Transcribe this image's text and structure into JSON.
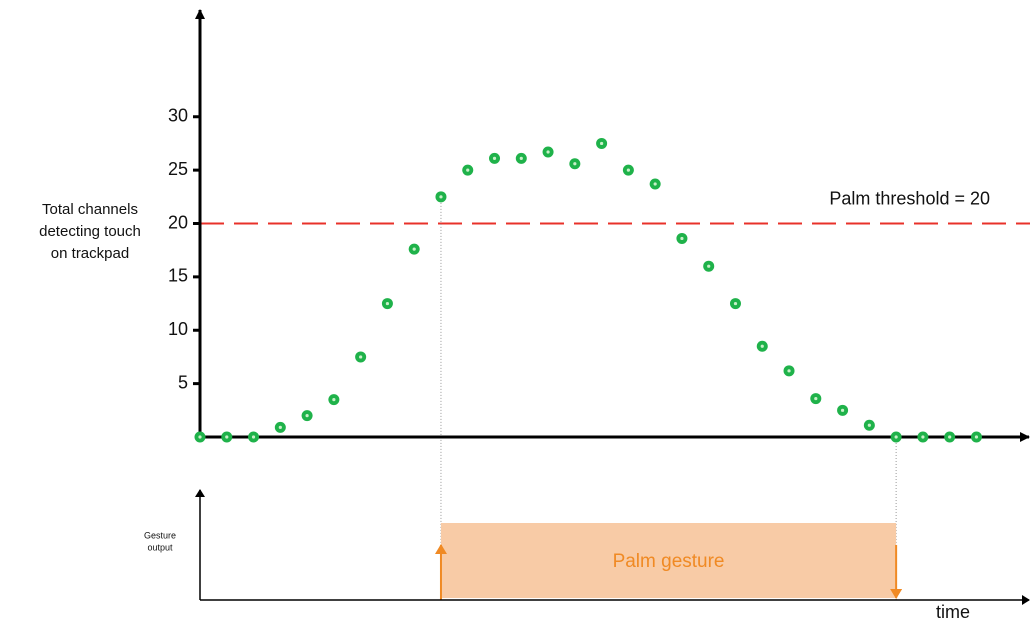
{
  "chart_data": {
    "type": "scatter",
    "ylabel": [
      "Total channels",
      "detecting touch",
      "on trackpad"
    ],
    "x": [
      0,
      1,
      2,
      3,
      4,
      5,
      6,
      7,
      8,
      9,
      10,
      11,
      12,
      13,
      14,
      15,
      16,
      17,
      18,
      19,
      20,
      21,
      22,
      23,
      24,
      25,
      26,
      27,
      28,
      29
    ],
    "values": [
      0,
      0,
      0,
      0.9,
      2,
      3.5,
      7.5,
      12.5,
      17.6,
      22.5,
      25,
      26.1,
      26.1,
      26.7,
      25.6,
      27.5,
      25,
      23.7,
      18.6,
      16,
      12.5,
      8.5,
      6.2,
      3.6,
      2.5,
      1.1,
      0,
      0,
      0,
      0
    ],
    "color": "#1fb24a",
    "xlim": [
      0,
      31
    ],
    "ylim": [
      0,
      40
    ],
    "yticks": [
      5,
      10,
      15,
      20,
      25,
      30
    ],
    "threshold": 20,
    "threshold_label": "Palm threshold = 20",
    "threshold_color": "#e8312a",
    "gesture_axis_label": [
      "Gesture",
      "output"
    ],
    "gesture_label": "Palm gesture",
    "gesture_color": "#f8cba6",
    "gesture_arrow_color": "#f08a24",
    "xlabel": "time"
  }
}
